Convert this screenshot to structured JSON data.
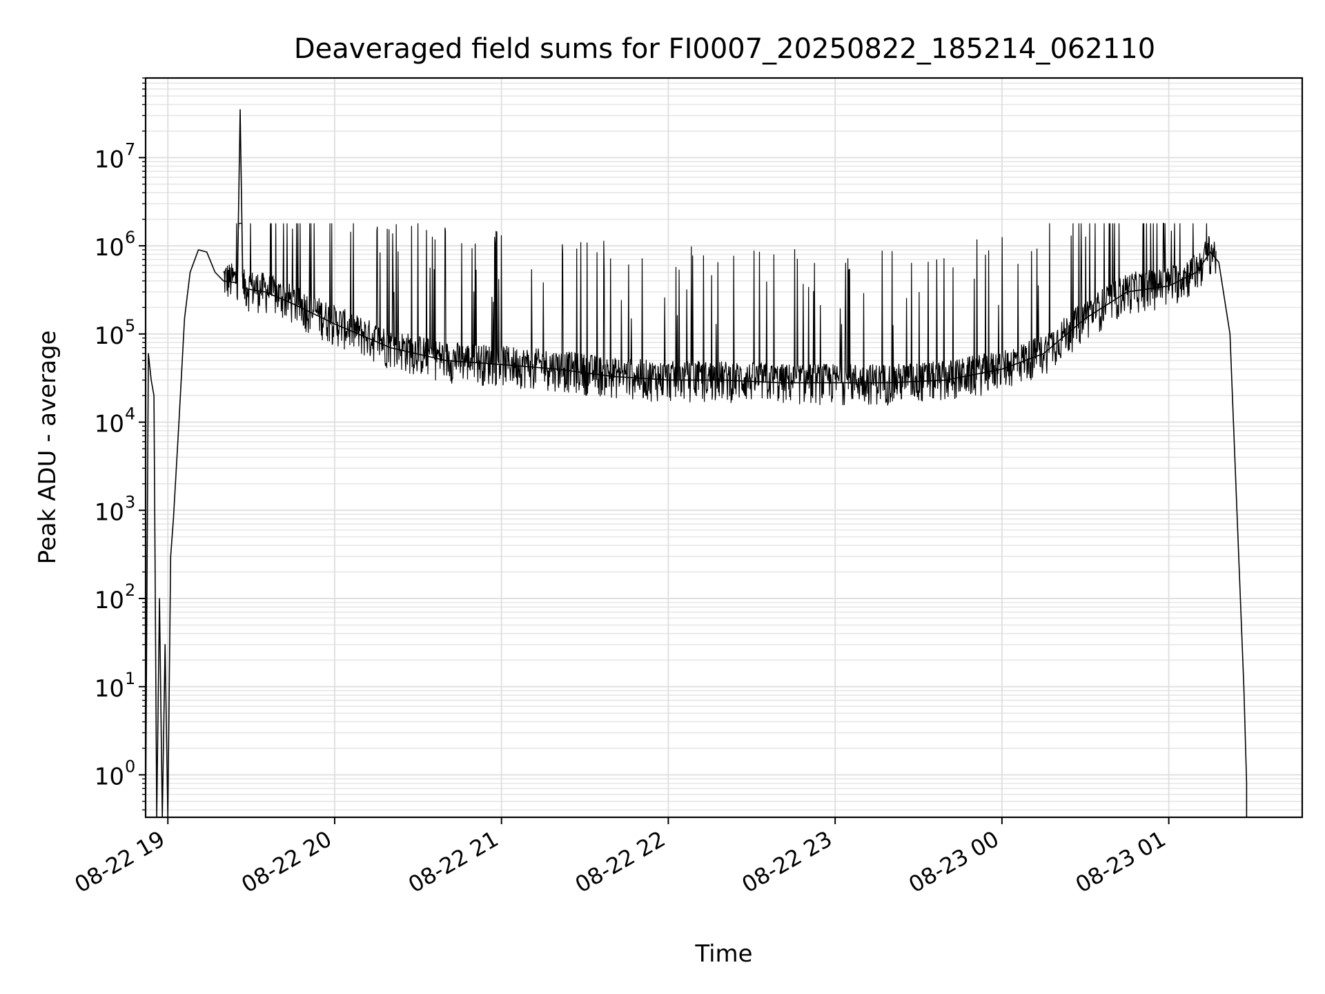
{
  "chart_data": {
    "type": "line",
    "title": "Deaveraged field sums for FI0007_20250822_185214_062110",
    "xlabel": "Time",
    "ylabel": "Peak ADU - average",
    "yscale": "log",
    "ylim": [
      0.33,
      80000000
    ],
    "xlim": [
      "2025-08-22 18:52",
      "2025-08-23 01:48"
    ],
    "grid": true,
    "minor_grid": true,
    "x_ticks": [
      {
        "t": "2025-08-22 19:00",
        "label": "08-22 19"
      },
      {
        "t": "2025-08-22 20:00",
        "label": "08-22 20"
      },
      {
        "t": "2025-08-22 21:00",
        "label": "08-22 21"
      },
      {
        "t": "2025-08-22 22:00",
        "label": "08-22 22"
      },
      {
        "t": "2025-08-22 23:00",
        "label": "08-22 23"
      },
      {
        "t": "2025-08-23 00:00",
        "label": "08-23 00"
      },
      {
        "t": "2025-08-23 01:00",
        "label": "08-23 01"
      }
    ],
    "y_ticks": [
      {
        "value": 1,
        "base": "10",
        "exp": "0"
      },
      {
        "value": 10,
        "base": "10",
        "exp": "1"
      },
      {
        "value": 100,
        "base": "10",
        "exp": "2"
      },
      {
        "value": 1000,
        "base": "10",
        "exp": "3"
      },
      {
        "value": 10000,
        "base": "10",
        "exp": "4"
      },
      {
        "value": 100000,
        "base": "10",
        "exp": "5"
      },
      {
        "value": 1000000,
        "base": "10",
        "exp": "6"
      },
      {
        "value": 10000000,
        "base": "10",
        "exp": "7"
      }
    ],
    "series": [
      {
        "color": "#000000",
        "points": [
          [
            "2025-08-22 18:52",
            0.33
          ],
          [
            "2025-08-22 18:53",
            60000
          ],
          [
            "2025-08-22 18:54",
            30000
          ],
          [
            "2025-08-22 18:55",
            20000
          ],
          [
            "2025-08-22 18:56",
            0.33
          ],
          [
            "2025-08-22 18:57",
            100
          ],
          [
            "2025-08-22 18:58",
            0.33
          ],
          [
            "2025-08-22 18:59",
            30
          ],
          [
            "2025-08-22 19:00",
            0.33
          ],
          [
            "2025-08-22 19:01",
            300
          ],
          [
            "2025-08-22 19:02",
            800
          ],
          [
            "2025-08-22 19:04",
            10000
          ],
          [
            "2025-08-22 19:06",
            150000
          ],
          [
            "2025-08-22 19:08",
            500000
          ],
          [
            "2025-08-22 19:11",
            900000
          ],
          [
            "2025-08-22 19:14",
            850000
          ],
          [
            "2025-08-22 19:17",
            500000
          ],
          [
            "2025-08-22 19:20",
            400000
          ],
          [
            "2025-08-22 19:25",
            380000
          ],
          [
            "2025-08-22 19:26",
            35000000
          ],
          [
            "2025-08-22 19:27",
            330000
          ],
          [
            "2025-08-22 19:35",
            300000
          ],
          [
            "2025-08-22 19:45",
            220000
          ],
          [
            "2025-08-22 20:00",
            130000
          ],
          [
            "2025-08-22 20:20",
            70000
          ],
          [
            "2025-08-22 20:40",
            50000
          ],
          [
            "2025-08-22 21:00",
            45000
          ],
          [
            "2025-08-22 21:20",
            40000
          ],
          [
            "2025-08-22 21:40",
            33000
          ],
          [
            "2025-08-22 22:00",
            30000
          ],
          [
            "2025-08-22 22:20",
            30000
          ],
          [
            "2025-08-22 22:40",
            28000
          ],
          [
            "2025-08-22 23:00",
            28000
          ],
          [
            "2025-08-22 23:20",
            28000
          ],
          [
            "2025-08-22 23:40",
            30000
          ],
          [
            "2025-08-23 00:00",
            40000
          ],
          [
            "2025-08-23 00:15",
            60000
          ],
          [
            "2025-08-23 00:30",
            150000
          ],
          [
            "2025-08-23 00:45",
            300000
          ],
          [
            "2025-08-23 01:00",
            350000
          ],
          [
            "2025-08-23 01:10",
            500000
          ],
          [
            "2025-08-23 01:15",
            850000
          ],
          [
            "2025-08-23 01:18",
            650000
          ],
          [
            "2025-08-23 01:22",
            100000
          ],
          [
            "2025-08-23 01:27",
            10
          ],
          [
            "2025-08-23 01:28",
            0.8
          ],
          [
            "2025-08-23 01:28",
            0.33
          ]
        ]
      }
    ]
  }
}
